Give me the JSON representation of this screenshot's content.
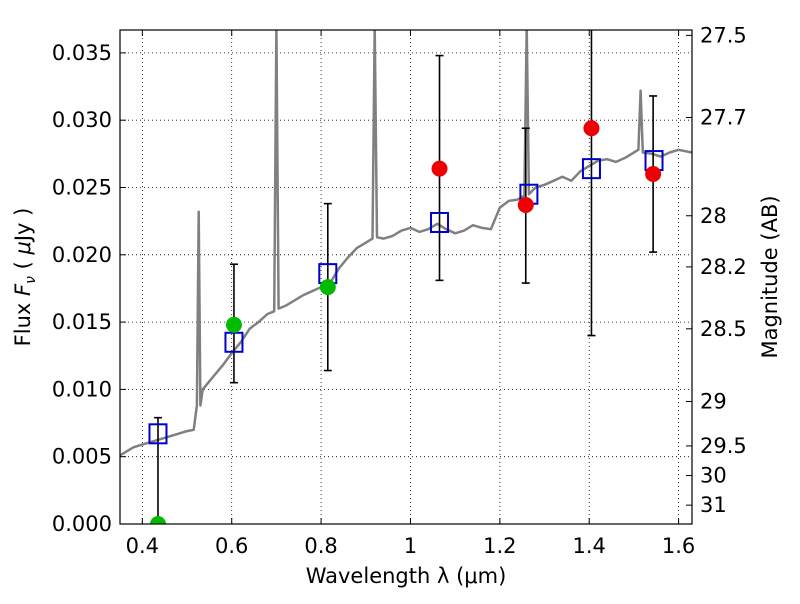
{
  "chart_data": {
    "type": "scatter",
    "xlabel": "Wavelength  λ (μm)",
    "ylabel": "Flux  F_ν  ( μJy )",
    "y2label": "Magnitude (AB)",
    "xlim": [
      0.35,
      1.63
    ],
    "ylim": [
      0.0,
      0.0367
    ],
    "grid": "dotted",
    "x_ticks": [
      0.4,
      0.6,
      0.8,
      1.0,
      1.2,
      1.4,
      1.6
    ],
    "x_tick_labels": [
      "0.4",
      "0.6",
      "0.8",
      "1",
      "1.2",
      "1.4",
      "1.6"
    ],
    "y_ticks": [
      0.0,
      0.005,
      0.01,
      0.015,
      0.02,
      0.025,
      0.03,
      0.035
    ],
    "y_tick_labels": [
      "0.000",
      "0.005",
      "0.010",
      "0.015",
      "0.020",
      "0.025",
      "0.030",
      "0.035"
    ],
    "mag_ticks": [
      {
        "label": "27.5",
        "flux": 0.0363
      },
      {
        "label": "27.7",
        "flux": 0.0302
      },
      {
        "label": "28",
        "flux": 0.0229
      },
      {
        "label": "28.2",
        "flux": 0.0191
      },
      {
        "label": "28.5",
        "flux": 0.0145
      },
      {
        "label": "29",
        "flux": 0.0091
      },
      {
        "label": "29.5",
        "flux": 0.0058
      },
      {
        "label": "30",
        "flux": 0.0036
      },
      {
        "label": "31",
        "flux": 0.0014
      }
    ],
    "colors": {
      "spectrum": "#808080",
      "model": "#0000cc",
      "green": "#00bb00",
      "red": "#ee0000",
      "error": "#000000"
    },
    "spectrum": [
      [
        0.35,
        0.0051
      ],
      [
        0.38,
        0.0057
      ],
      [
        0.41,
        0.006
      ],
      [
        0.44,
        0.0063
      ],
      [
        0.47,
        0.0066
      ],
      [
        0.5,
        0.0069
      ],
      [
        0.515,
        0.007
      ],
      [
        0.522,
        0.0088
      ],
      [
        0.526,
        0.0232
      ],
      [
        0.53,
        0.0088
      ],
      [
        0.535,
        0.01
      ],
      [
        0.56,
        0.011
      ],
      [
        0.58,
        0.0118
      ],
      [
        0.6,
        0.0127
      ],
      [
        0.62,
        0.0135
      ],
      [
        0.64,
        0.0145
      ],
      [
        0.66,
        0.015
      ],
      [
        0.68,
        0.0156
      ],
      [
        0.695,
        0.0158
      ],
      [
        0.7,
        0.037
      ],
      [
        0.705,
        0.016
      ],
      [
        0.72,
        0.0162
      ],
      [
        0.74,
        0.0166
      ],
      [
        0.76,
        0.017
      ],
      [
        0.78,
        0.0173
      ],
      [
        0.8,
        0.0176
      ],
      [
        0.82,
        0.0179
      ],
      [
        0.84,
        0.019
      ],
      [
        0.86,
        0.0198
      ],
      [
        0.88,
        0.0205
      ],
      [
        0.9,
        0.0209
      ],
      [
        0.915,
        0.0212
      ],
      [
        0.92,
        0.037
      ],
      [
        0.925,
        0.0213
      ],
      [
        0.94,
        0.0212
      ],
      [
        0.96,
        0.0214
      ],
      [
        0.98,
        0.0218
      ],
      [
        1.0,
        0.022
      ],
      [
        1.02,
        0.0217
      ],
      [
        1.04,
        0.0219
      ],
      [
        1.06,
        0.0223
      ],
      [
        1.08,
        0.0219
      ],
      [
        1.1,
        0.0216
      ],
      [
        1.12,
        0.0218
      ],
      [
        1.14,
        0.0222
      ],
      [
        1.16,
        0.022
      ],
      [
        1.18,
        0.0219
      ],
      [
        1.2,
        0.0235
      ],
      [
        1.22,
        0.024
      ],
      [
        1.24,
        0.0241
      ],
      [
        1.255,
        0.0244
      ],
      [
        1.26,
        0.037
      ],
      [
        1.265,
        0.0245
      ],
      [
        1.28,
        0.025
      ],
      [
        1.3,
        0.0252
      ],
      [
        1.32,
        0.0255
      ],
      [
        1.34,
        0.0258
      ],
      [
        1.36,
        0.0255
      ],
      [
        1.38,
        0.0262
      ],
      [
        1.4,
        0.0266
      ],
      [
        1.42,
        0.027
      ],
      [
        1.44,
        0.0271
      ],
      [
        1.46,
        0.0269
      ],
      [
        1.48,
        0.0272
      ],
      [
        1.5,
        0.0276
      ],
      [
        1.51,
        0.0278
      ],
      [
        1.515,
        0.0322
      ],
      [
        1.52,
        0.0276
      ],
      [
        1.54,
        0.0275
      ],
      [
        1.56,
        0.0273
      ],
      [
        1.58,
        0.0276
      ],
      [
        1.6,
        0.0278
      ],
      [
        1.63,
        0.0276
      ]
    ],
    "model_boxes": [
      {
        "x": 0.435,
        "y": 0.0067
      },
      {
        "x": 0.605,
        "y": 0.0135
      },
      {
        "x": 0.815,
        "y": 0.0186
      },
      {
        "x": 1.065,
        "y": 0.0224
      },
      {
        "x": 1.265,
        "y": 0.0245
      },
      {
        "x": 1.405,
        "y": 0.0264
      },
      {
        "x": 1.545,
        "y": 0.027
      }
    ],
    "points": [
      {
        "x": 0.435,
        "y": 0.0,
        "yerr_low": 0.0,
        "yerr_high": 0.0079,
        "color": "green"
      },
      {
        "x": 0.605,
        "y": 0.0148,
        "yerr_low": 0.0105,
        "yerr_high": 0.0193,
        "color": "green"
      },
      {
        "x": 0.815,
        "y": 0.0176,
        "yerr_low": 0.0114,
        "yerr_high": 0.0238,
        "color": "green"
      },
      {
        "x": 1.065,
        "y": 0.0264,
        "yerr_low": 0.0181,
        "yerr_high": 0.0348,
        "color": "red"
      },
      {
        "x": 1.258,
        "y": 0.0237,
        "yerr_low": 0.0179,
        "yerr_high": 0.0294,
        "color": "red"
      },
      {
        "x": 1.405,
        "y": 0.0294,
        "yerr_low": 0.014,
        "yerr_high": 0.037,
        "color": "red"
      },
      {
        "x": 1.543,
        "y": 0.026,
        "yerr_low": 0.0202,
        "yerr_high": 0.0318,
        "color": "red"
      }
    ]
  }
}
